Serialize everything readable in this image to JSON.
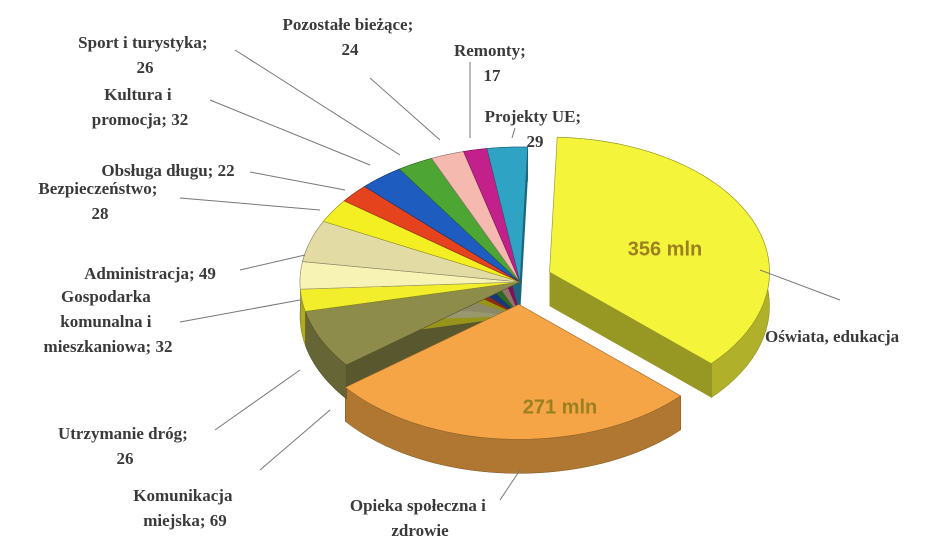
{
  "chart_data": {
    "type": "pie",
    "categories": [
      "Oświata, edukacja",
      "Opieka społeczna i zdrowie",
      "Komunikacja miejska; 69",
      "Utrzymanie dróg; 26",
      "Gospodarka komunalna i mieszkaniowa; 32",
      "Administracja; 49",
      "Bezpieczeństwo; 28",
      "Obsługa długu; 22",
      "Kultura i promocja; 32",
      "Sport i turystyka; 26",
      "Pozostałe bieżące; 24",
      "Remonty; 17",
      "Projekty UE; 29"
    ],
    "values": [
      356,
      271,
      69,
      26,
      32,
      49,
      28,
      22,
      32,
      26,
      24,
      17,
      29
    ],
    "value_labels": [
      "356 mln",
      "271 mln",
      null,
      null,
      null,
      null,
      null,
      null,
      null,
      null,
      null,
      null,
      null
    ],
    "colors": [
      "#f4f43a",
      "#f5a545",
      "#8e8c4a",
      "#f2ee2c",
      "#f7f3b4",
      "#e3dba4",
      "#f3ef22",
      "#e4431e",
      "#1e5cc0",
      "#4da634",
      "#f5b9b0",
      "#c4208c",
      "#2ea3c4"
    ]
  }
}
